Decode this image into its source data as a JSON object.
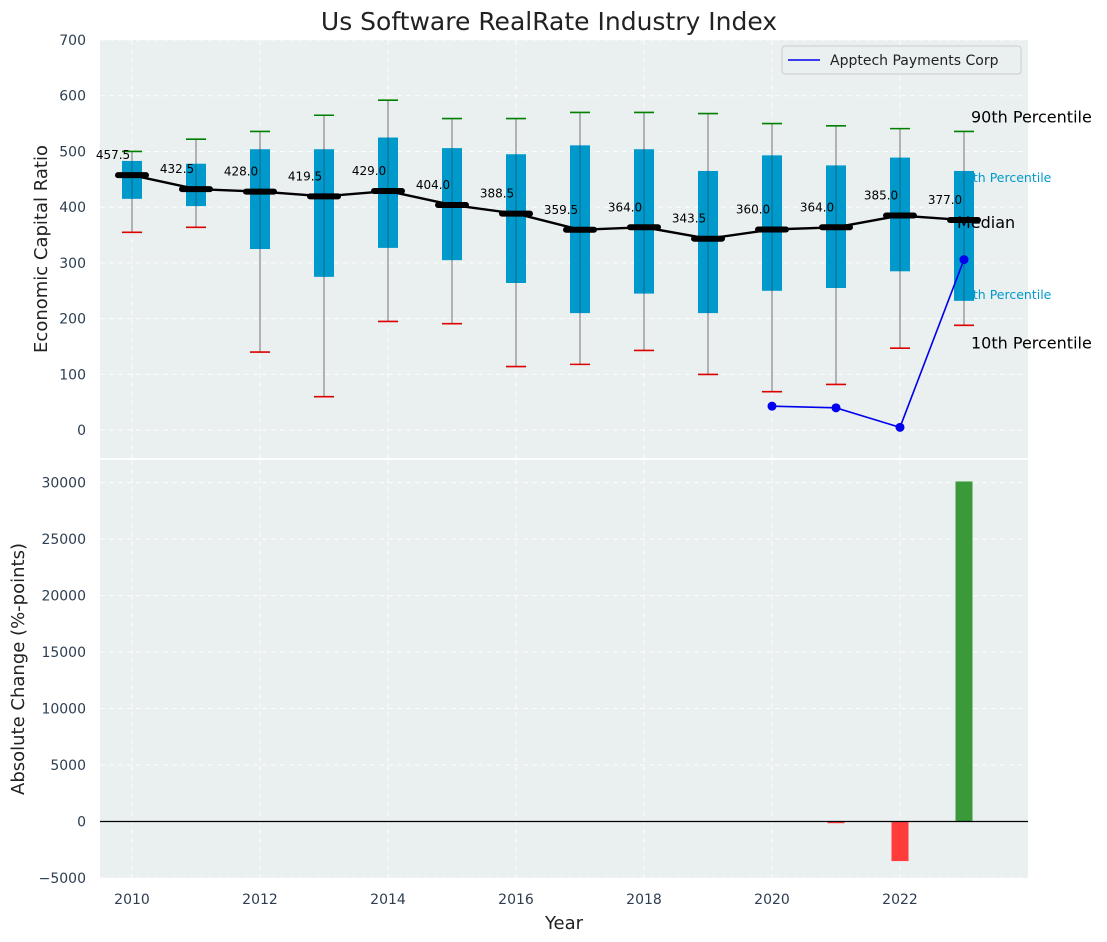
{
  "title": "Us Software RealRate Industry Index",
  "colors": {
    "panel_bg": "#eaeff0",
    "box": "#0099cc",
    "median_line": "#000000",
    "p90_cap": "#008000",
    "p10_cap": "#dd0000",
    "company": "#0000ee",
    "bar_positive": "#3a9a3a",
    "bar_negative": "#ff3b3b"
  },
  "chart_data": [
    {
      "type": "box",
      "ylabel": "Economic Capital Ratio",
      "ylim": [
        -50,
        700
      ],
      "yticks": [
        0,
        100,
        200,
        300,
        400,
        500,
        600,
        700
      ],
      "grid": true,
      "years": [
        2010,
        2011,
        2012,
        2013,
        2014,
        2015,
        2016,
        2017,
        2018,
        2019,
        2020,
        2021,
        2022,
        2023
      ],
      "median": [
        457.5,
        432.5,
        428.0,
        419.5,
        429.0,
        404.0,
        388.5,
        359.5,
        364.0,
        343.5,
        360.0,
        364.0,
        385.0,
        377.0
      ],
      "median_labels": [
        "457.5",
        "432.5",
        "428.0",
        "419.5",
        "429.0",
        "404.0",
        "388.5",
        "359.5",
        "364.0",
        "343.5",
        "360.0",
        "364.0",
        "385.0",
        "377.0"
      ],
      "q1": [
        415,
        402,
        325,
        275,
        327,
        305,
        264,
        210,
        245,
        210,
        250,
        255,
        285,
        232
      ],
      "q3": [
        483,
        478,
        504,
        504,
        525,
        506,
        495,
        511,
        504,
        465,
        493,
        475,
        489,
        465
      ],
      "p10": [
        355,
        364,
        140,
        60,
        195,
        191,
        114,
        118,
        143,
        100,
        69,
        82,
        147,
        188
      ],
      "p90": [
        500,
        522,
        536,
        565,
        592,
        559,
        559,
        570,
        570,
        568,
        550,
        546,
        541,
        536
      ],
      "company": {
        "name": "Apptech Payments Corp",
        "x": [
          2020,
          2021,
          2022,
          2023
        ],
        "y": [
          43,
          40,
          5,
          306
        ]
      },
      "legend": {
        "position": "top-right",
        "entries": [
          "Apptech Payments Corp"
        ]
      },
      "annotations": {
        "p90": "90th Percentile",
        "p75": "75th Percentile",
        "median": "Median",
        "p25": "25th Percentile",
        "p10": "10th Percentile"
      }
    },
    {
      "type": "bar",
      "xlabel": "Year",
      "ylabel": "Absolute Change (%-points)",
      "ylim": [
        -5000,
        32000
      ],
      "yticks": [
        -5000,
        0,
        5000,
        10000,
        15000,
        20000,
        25000,
        30000
      ],
      "ytick_labels": [
        "−5000",
        "0",
        "5000",
        "10000",
        "15000",
        "20000",
        "25000",
        "30000"
      ],
      "grid": true,
      "x": [
        2021,
        2022,
        2023
      ],
      "values": [
        -150,
        -3500,
        30100
      ],
      "xlim": [
        2009.5,
        2024
      ],
      "xticks": [
        2010,
        2012,
        2014,
        2016,
        2018,
        2020,
        2022
      ]
    }
  ]
}
